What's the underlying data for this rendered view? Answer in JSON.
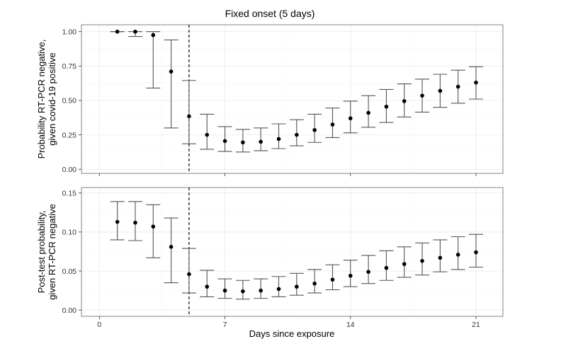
{
  "chart_data": {
    "type": "scatter",
    "title": "Fixed onset (5 days)",
    "xlabel": "Days since exposure",
    "xlim": [
      -1,
      22.5
    ],
    "x_ticks": [
      0,
      7,
      14,
      21
    ],
    "vline_x": 5,
    "panels": [
      {
        "ylabel_lines": [
          "Probability RT-PCR negative,",
          "given covid-19 positive"
        ],
        "ylim": [
          -0.03,
          1.05
        ],
        "y_ticks": [
          0.0,
          0.25,
          0.5,
          0.75,
          1.0
        ],
        "y_tick_labels": [
          "0.00",
          "0.25",
          "0.50",
          "0.75",
          "1.00"
        ],
        "series": [
          {
            "x": [
              1,
              2,
              3,
              4,
              5,
              6,
              7,
              8,
              9,
              10,
              11,
              12,
              13,
              14,
              15,
              16,
              17,
              18,
              19,
              20,
              21
            ],
            "y": [
              1.0,
              1.0,
              0.975,
              0.71,
              0.385,
              0.25,
              0.205,
              0.195,
              0.2,
              0.22,
              0.25,
              0.285,
              0.325,
              0.37,
              0.41,
              0.455,
              0.495,
              0.535,
              0.57,
              0.6,
              0.63
            ],
            "lower": [
              1.0,
              0.965,
              0.59,
              0.3,
              0.185,
              0.145,
              0.13,
              0.125,
              0.135,
              0.15,
              0.17,
              0.195,
              0.23,
              0.265,
              0.305,
              0.34,
              0.38,
              0.415,
              0.45,
              0.48,
              0.51
            ],
            "upper": [
              1.0,
              1.0,
              1.0,
              0.94,
              0.645,
              0.4,
              0.31,
              0.29,
              0.3,
              0.33,
              0.36,
              0.4,
              0.445,
              0.495,
              0.535,
              0.58,
              0.62,
              0.655,
              0.69,
              0.72,
              0.745
            ]
          }
        ]
      },
      {
        "ylabel_lines": [
          "Post-test probability,",
          "given RT-PCR negative"
        ],
        "ylim": [
          -0.008,
          0.157
        ],
        "y_ticks": [
          0.0,
          0.05,
          0.1,
          0.15
        ],
        "y_tick_labels": [
          "0.00",
          "0.05",
          "0.10",
          "0.15"
        ],
        "series": [
          {
            "x": [
              1,
              2,
              3,
              4,
              5,
              6,
              7,
              8,
              9,
              10,
              11,
              12,
              13,
              14,
              15,
              16,
              17,
              18,
              19,
              20,
              21
            ],
            "y": [
              0.113,
              0.112,
              0.107,
              0.081,
              0.046,
              0.03,
              0.025,
              0.024,
              0.025,
              0.027,
              0.03,
              0.034,
              0.039,
              0.044,
              0.049,
              0.054,
              0.059,
              0.063,
              0.067,
              0.071,
              0.074
            ],
            "lower": [
              0.09,
              0.089,
              0.067,
              0.035,
              0.022,
              0.017,
              0.015,
              0.014,
              0.015,
              0.017,
              0.019,
              0.022,
              0.026,
              0.03,
              0.034,
              0.038,
              0.042,
              0.045,
              0.049,
              0.052,
              0.055
            ],
            "upper": [
              0.139,
              0.139,
              0.135,
              0.118,
              0.079,
              0.051,
              0.04,
              0.038,
              0.04,
              0.043,
              0.047,
              0.052,
              0.058,
              0.064,
              0.07,
              0.076,
              0.081,
              0.086,
              0.09,
              0.094,
              0.097
            ]
          }
        ]
      }
    ]
  }
}
